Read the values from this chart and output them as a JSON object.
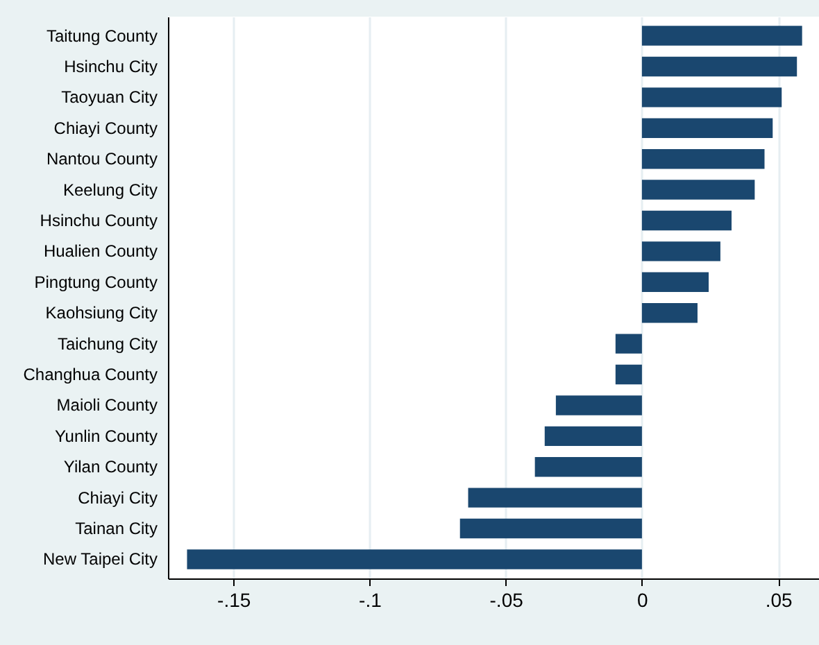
{
  "chart_data": {
    "type": "bar",
    "orientation": "horizontal",
    "categories": [
      "Taitung County",
      "Hsinchu City",
      "Taoyuan City",
      "Chiayi County",
      "Nantou County",
      "Keelung City",
      "Hsinchu County",
      "Hualien County",
      "Pingtung County",
      "Kaohsiung City",
      "Taichung City",
      "Changhua County",
      "Maioli County",
      "Yunlin County",
      "Yilan County",
      "Chiayi City",
      "Tainan City",
      "New Taipei City"
    ],
    "values": [
      0.0588,
      0.0569,
      0.0513,
      0.048,
      0.045,
      0.0414,
      0.0329,
      0.0288,
      0.0245,
      0.0204,
      -0.0097,
      -0.0097,
      -0.0316,
      -0.0357,
      -0.0393,
      -0.0638,
      -0.0668,
      -0.167
    ],
    "color": "#1a476f",
    "xlim": [
      -0.174,
      0.065
    ],
    "xticks": [
      {
        "value": -0.15,
        "label": "-.15"
      },
      {
        "value": -0.1,
        "label": "-.1"
      },
      {
        "value": -0.05,
        "label": "-.05"
      },
      0,
      {
        "value": 0.05,
        "label": ".05"
      }
    ],
    "grid": "x"
  }
}
